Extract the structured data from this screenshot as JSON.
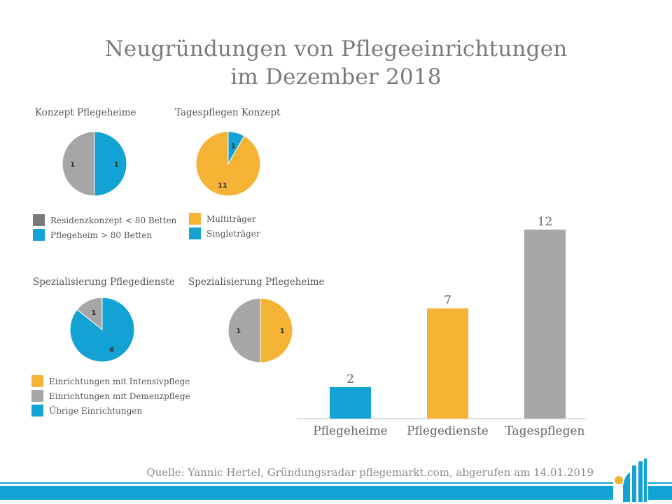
{
  "title_line1": "Neugründungen von Pflegeeinrichtungen",
  "title_line2": "im Dezember 2018",
  "source": "Quelle: Yannic Hertel, Gründungsradar pflegemarkt.com, abgerufen am 14.01.2019",
  "chart_data": [
    {
      "type": "pie",
      "title": "Konzept Pflegeheime",
      "slices": [
        {
          "label": "Pflegeheim > 80 Betten",
          "value": 1,
          "color": "#12a3d4"
        },
        {
          "label": "Residenzkonzept < 80 Betten",
          "value": 1,
          "color": "#a6a6a6"
        }
      ],
      "legend": [
        {
          "label": "Residenzkonzept < 80 Betten",
          "color": "#7a7a7a"
        },
        {
          "label": "Pflegeheim > 80 Betten",
          "color": "#12a3d4"
        }
      ]
    },
    {
      "type": "pie",
      "title": "Tagespflegen Konzept",
      "slices": [
        {
          "label": "Singleträger",
          "value": 1,
          "color": "#12a3d4"
        },
        {
          "label": "Multiträger",
          "value": 11,
          "color": "#f5b335"
        }
      ],
      "legend": [
        {
          "label": "Multiträger",
          "color": "#f5b335"
        },
        {
          "label": "Singleträger",
          "color": "#12a3d4"
        }
      ]
    },
    {
      "type": "pie",
      "title": "Spezialisierung Pflegedienste",
      "slices": [
        {
          "label": "Übrige Einrichtungen",
          "value": 6,
          "color": "#12a3d4"
        },
        {
          "label": "Einrichtungen mit Demenzpflege",
          "value": 1,
          "color": "#a6a6a6"
        }
      ],
      "legend": [
        {
          "label": "Einrichtungen  mit Intensivpflege",
          "color": "#f5b335"
        },
        {
          "label": "Einrichtungen  mit Demenzpflege",
          "color": "#a6a6a6"
        },
        {
          "label": "Übrige Einrichtungen",
          "color": "#12a3d4"
        }
      ]
    },
    {
      "type": "pie",
      "title": "Spezialisierung Pflegeheime",
      "slices": [
        {
          "label": "Einrichtungen mit Intensivpflege",
          "value": 1,
          "color": "#f5b335"
        },
        {
          "label": "Einrichtungen mit Demenzpflege",
          "value": 1,
          "color": "#a6a6a6"
        }
      ]
    },
    {
      "type": "bar",
      "categories": [
        "Pflegeheime",
        "Pflegedienste",
        "Tagespflegen"
      ],
      "values": [
        2,
        7,
        12
      ],
      "colors": [
        "#12a3d4",
        "#f5b335",
        "#a6a6a6"
      ],
      "ylim": [
        0,
        12
      ]
    }
  ]
}
